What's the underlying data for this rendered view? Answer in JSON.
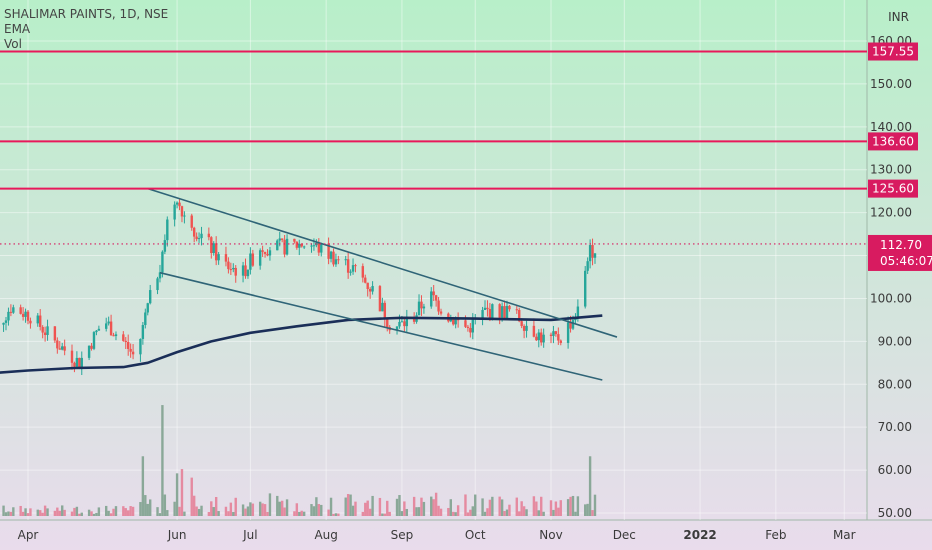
{
  "header": {
    "symbol_title": "SHALIMAR PAINTS, 1D, NSE",
    "indicators": [
      "EMA",
      "Vol"
    ],
    "currency": "INR"
  },
  "colors": {
    "bg_top": "#b8efc9",
    "bg_bottom": "#e9dcec",
    "level_line": "#e8185a",
    "trendline": "#2f6477",
    "ema": "#1a2e58",
    "candle_up": "#26a69a",
    "candle_down": "#ef5350",
    "vol_up": "#8aa898",
    "vol_down": "#e58aa0",
    "price_tag": "#d81b60"
  },
  "chart_data": {
    "type": "candlestick",
    "ylim": [
      49,
      163
    ],
    "y_ticks": [
      "50.00",
      "60.00",
      "70.00",
      "80.00",
      "90.00",
      "100.00",
      "110.00",
      "120.00",
      "130.00",
      "140.00",
      "150.00",
      "160.00"
    ],
    "x_ticks": [
      "Apr",
      "Jun",
      "Jul",
      "Aug",
      "Sep",
      "Oct",
      "Nov",
      "Dec",
      "2022",
      "Feb",
      "Mar"
    ],
    "x_tick_dates": [
      "2021-04-01",
      "2021-06-01",
      "2021-07-01",
      "2021-08-01",
      "2021-09-01",
      "2021-10-01",
      "2021-11-01",
      "2021-12-01",
      "2022-01-01",
      "2022-02-01",
      "2022-03-01"
    ],
    "horizontal_levels": [
      {
        "label": "157.55",
        "value": 157.55
      },
      {
        "label": "136.60",
        "value": 136.6
      },
      {
        "label": "125.60",
        "value": 125.6
      }
    ],
    "last_price": {
      "label": "112.70",
      "value": 112.7,
      "countdown": "05:46:07"
    },
    "trendlines": [
      {
        "from": {
          "date": "2021-05-20",
          "price": 125.6
        },
        "to": {
          "date": "2021-11-28",
          "price": 91.0
        }
      },
      {
        "from": {
          "date": "2021-05-25",
          "price": 106.0
        },
        "to": {
          "date": "2021-11-22",
          "price": 81.0
        }
      }
    ],
    "ema": [
      {
        "date": "2021-03-15",
        "value": 82.5
      },
      {
        "date": "2021-04-01",
        "value": 83.2
      },
      {
        "date": "2021-04-20",
        "value": 83.8
      },
      {
        "date": "2021-05-10",
        "value": 84.0
      },
      {
        "date": "2021-05-20",
        "value": 85.0
      },
      {
        "date": "2021-06-01",
        "value": 87.5
      },
      {
        "date": "2021-06-15",
        "value": 90.0
      },
      {
        "date": "2021-07-01",
        "value": 92.0
      },
      {
        "date": "2021-07-20",
        "value": 93.5
      },
      {
        "date": "2021-08-10",
        "value": 95.0
      },
      {
        "date": "2021-09-01",
        "value": 95.5
      },
      {
        "date": "2021-10-01",
        "value": 95.3
      },
      {
        "date": "2021-11-01",
        "value": 95.0
      },
      {
        "date": "2021-11-22",
        "value": 96.0
      }
    ],
    "candle_path": [
      {
        "date": "2021-03-15",
        "value": 90
      },
      {
        "date": "2021-03-25",
        "value": 98
      },
      {
        "date": "2021-04-02",
        "value": 96
      },
      {
        "date": "2021-04-12",
        "value": 90
      },
      {
        "date": "2021-04-22",
        "value": 85
      },
      {
        "date": "2021-05-02",
        "value": 95
      },
      {
        "date": "2021-05-10",
        "value": 90
      },
      {
        "date": "2021-05-15",
        "value": 86
      },
      {
        "date": "2021-05-20",
        "value": 98
      },
      {
        "date": "2021-05-25",
        "value": 108
      },
      {
        "date": "2021-05-28",
        "value": 118
      },
      {
        "date": "2021-06-01",
        "value": 124
      },
      {
        "date": "2021-06-05",
        "value": 118
      },
      {
        "date": "2021-06-12",
        "value": 114
      },
      {
        "date": "2021-06-20",
        "value": 108
      },
      {
        "date": "2021-06-28",
        "value": 106
      },
      {
        "date": "2021-07-05",
        "value": 112
      },
      {
        "date": "2021-07-15",
        "value": 112
      },
      {
        "date": "2021-07-25",
        "value": 113
      },
      {
        "date": "2021-08-03",
        "value": 110
      },
      {
        "date": "2021-08-12",
        "value": 107
      },
      {
        "date": "2021-08-20",
        "value": 102
      },
      {
        "date": "2021-08-28",
        "value": 93
      },
      {
        "date": "2021-09-05",
        "value": 95
      },
      {
        "date": "2021-09-12",
        "value": 101
      },
      {
        "date": "2021-09-20",
        "value": 96
      },
      {
        "date": "2021-09-28",
        "value": 93
      },
      {
        "date": "2021-10-05",
        "value": 97
      },
      {
        "date": "2021-10-15",
        "value": 97
      },
      {
        "date": "2021-10-22",
        "value": 94
      },
      {
        "date": "2021-10-30",
        "value": 90
      },
      {
        "date": "2021-11-05",
        "value": 91
      },
      {
        "date": "2021-11-12",
        "value": 97
      },
      {
        "date": "2021-11-16",
        "value": 110
      },
      {
        "date": "2021-11-20",
        "value": 112.7
      }
    ],
    "volume_ylim": [
      0,
      30
    ],
    "volume_bars": [
      {
        "date": "2021-05-22",
        "value": 15
      },
      {
        "date": "2021-05-26",
        "value": 26
      },
      {
        "date": "2021-05-29",
        "value": 27
      },
      {
        "date": "2021-06-01",
        "value": 10
      },
      {
        "date": "2021-06-03",
        "value": 11
      },
      {
        "date": "2021-06-05",
        "value": 18
      },
      {
        "date": "2021-06-07",
        "value": 9
      },
      {
        "date": "2021-05-18",
        "value": 14
      },
      {
        "date": "2021-07-10",
        "value": 8
      },
      {
        "date": "2021-07-18",
        "value": 12
      },
      {
        "date": "2021-08-01",
        "value": 9
      },
      {
        "date": "2021-11-14",
        "value": 10
      },
      {
        "date": "2021-11-17",
        "value": 14
      },
      {
        "date": "2021-11-19",
        "value": 5
      }
    ]
  }
}
